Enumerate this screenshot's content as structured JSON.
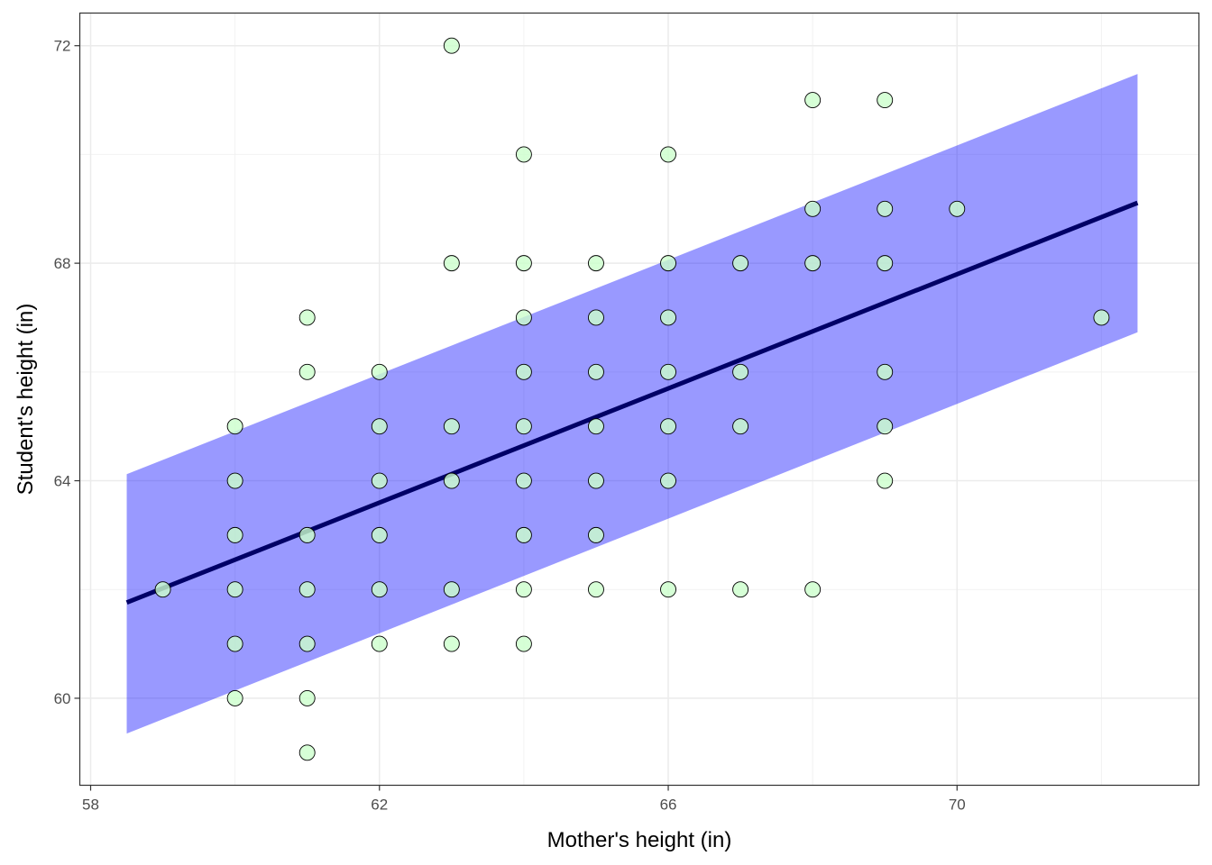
{
  "chart_data": {
    "type": "scatter",
    "title": "",
    "xlabel": "Mother's height (in)",
    "ylabel": "Student's height (in)",
    "xlim": [
      57.85,
      73.35
    ],
    "ylim": [
      58.4,
      72.6
    ],
    "x_ticks": [
      58,
      62,
      66,
      70
    ],
    "y_ticks": [
      60,
      64,
      68,
      72
    ],
    "x_minor_gridlines": [
      60,
      64,
      68,
      72
    ],
    "y_minor_gridlines": [
      62,
      66,
      70
    ],
    "grid": true,
    "regression_line": {
      "x": [
        58.5,
        72.5
      ],
      "y": [
        61.76,
        69.11
      ],
      "color": "#000066"
    },
    "prediction_band": {
      "x": [
        58.5,
        72.5
      ],
      "lower": [
        59.35,
        66.73
      ],
      "upper": [
        64.12,
        71.48
      ],
      "color": "#0000ff",
      "opacity": 0.4
    },
    "point_fill": "#ccffcc",
    "point_stroke": "#000000",
    "points": [
      {
        "x": 59,
        "y": 62
      },
      {
        "x": 60,
        "y": 65
      },
      {
        "x": 60,
        "y": 64
      },
      {
        "x": 60,
        "y": 63
      },
      {
        "x": 60,
        "y": 62
      },
      {
        "x": 60,
        "y": 61
      },
      {
        "x": 60,
        "y": 60
      },
      {
        "x": 61,
        "y": 67
      },
      {
        "x": 61,
        "y": 66
      },
      {
        "x": 61,
        "y": 63
      },
      {
        "x": 61,
        "y": 62
      },
      {
        "x": 61,
        "y": 61
      },
      {
        "x": 61,
        "y": 60
      },
      {
        "x": 61,
        "y": 59
      },
      {
        "x": 62,
        "y": 66
      },
      {
        "x": 62,
        "y": 65
      },
      {
        "x": 62,
        "y": 64
      },
      {
        "x": 62,
        "y": 63
      },
      {
        "x": 62,
        "y": 62
      },
      {
        "x": 62,
        "y": 61
      },
      {
        "x": 63,
        "y": 72
      },
      {
        "x": 63,
        "y": 68
      },
      {
        "x": 63,
        "y": 65
      },
      {
        "x": 63,
        "y": 64
      },
      {
        "x": 63,
        "y": 62
      },
      {
        "x": 63,
        "y": 61
      },
      {
        "x": 64,
        "y": 70
      },
      {
        "x": 64,
        "y": 68
      },
      {
        "x": 64,
        "y": 67
      },
      {
        "x": 64,
        "y": 66
      },
      {
        "x": 64,
        "y": 65
      },
      {
        "x": 64,
        "y": 64
      },
      {
        "x": 64,
        "y": 63
      },
      {
        "x": 64,
        "y": 62
      },
      {
        "x": 64,
        "y": 61
      },
      {
        "x": 65,
        "y": 68
      },
      {
        "x": 65,
        "y": 67
      },
      {
        "x": 65,
        "y": 66
      },
      {
        "x": 65,
        "y": 65
      },
      {
        "x": 65,
        "y": 64
      },
      {
        "x": 65,
        "y": 63
      },
      {
        "x": 65,
        "y": 62
      },
      {
        "x": 66,
        "y": 70
      },
      {
        "x": 66,
        "y": 68
      },
      {
        "x": 66,
        "y": 67
      },
      {
        "x": 66,
        "y": 66
      },
      {
        "x": 66,
        "y": 65
      },
      {
        "x": 66,
        "y": 64
      },
      {
        "x": 66,
        "y": 62
      },
      {
        "x": 67,
        "y": 68
      },
      {
        "x": 67,
        "y": 66
      },
      {
        "x": 67,
        "y": 65
      },
      {
        "x": 67,
        "y": 62
      },
      {
        "x": 68,
        "y": 71
      },
      {
        "x": 68,
        "y": 69
      },
      {
        "x": 68,
        "y": 68
      },
      {
        "x": 68,
        "y": 62
      },
      {
        "x": 69,
        "y": 71
      },
      {
        "x": 69,
        "y": 69
      },
      {
        "x": 69,
        "y": 68
      },
      {
        "x": 69,
        "y": 66
      },
      {
        "x": 69,
        "y": 65
      },
      {
        "x": 69,
        "y": 64
      },
      {
        "x": 70,
        "y": 69
      },
      {
        "x": 72,
        "y": 67
      }
    ]
  }
}
